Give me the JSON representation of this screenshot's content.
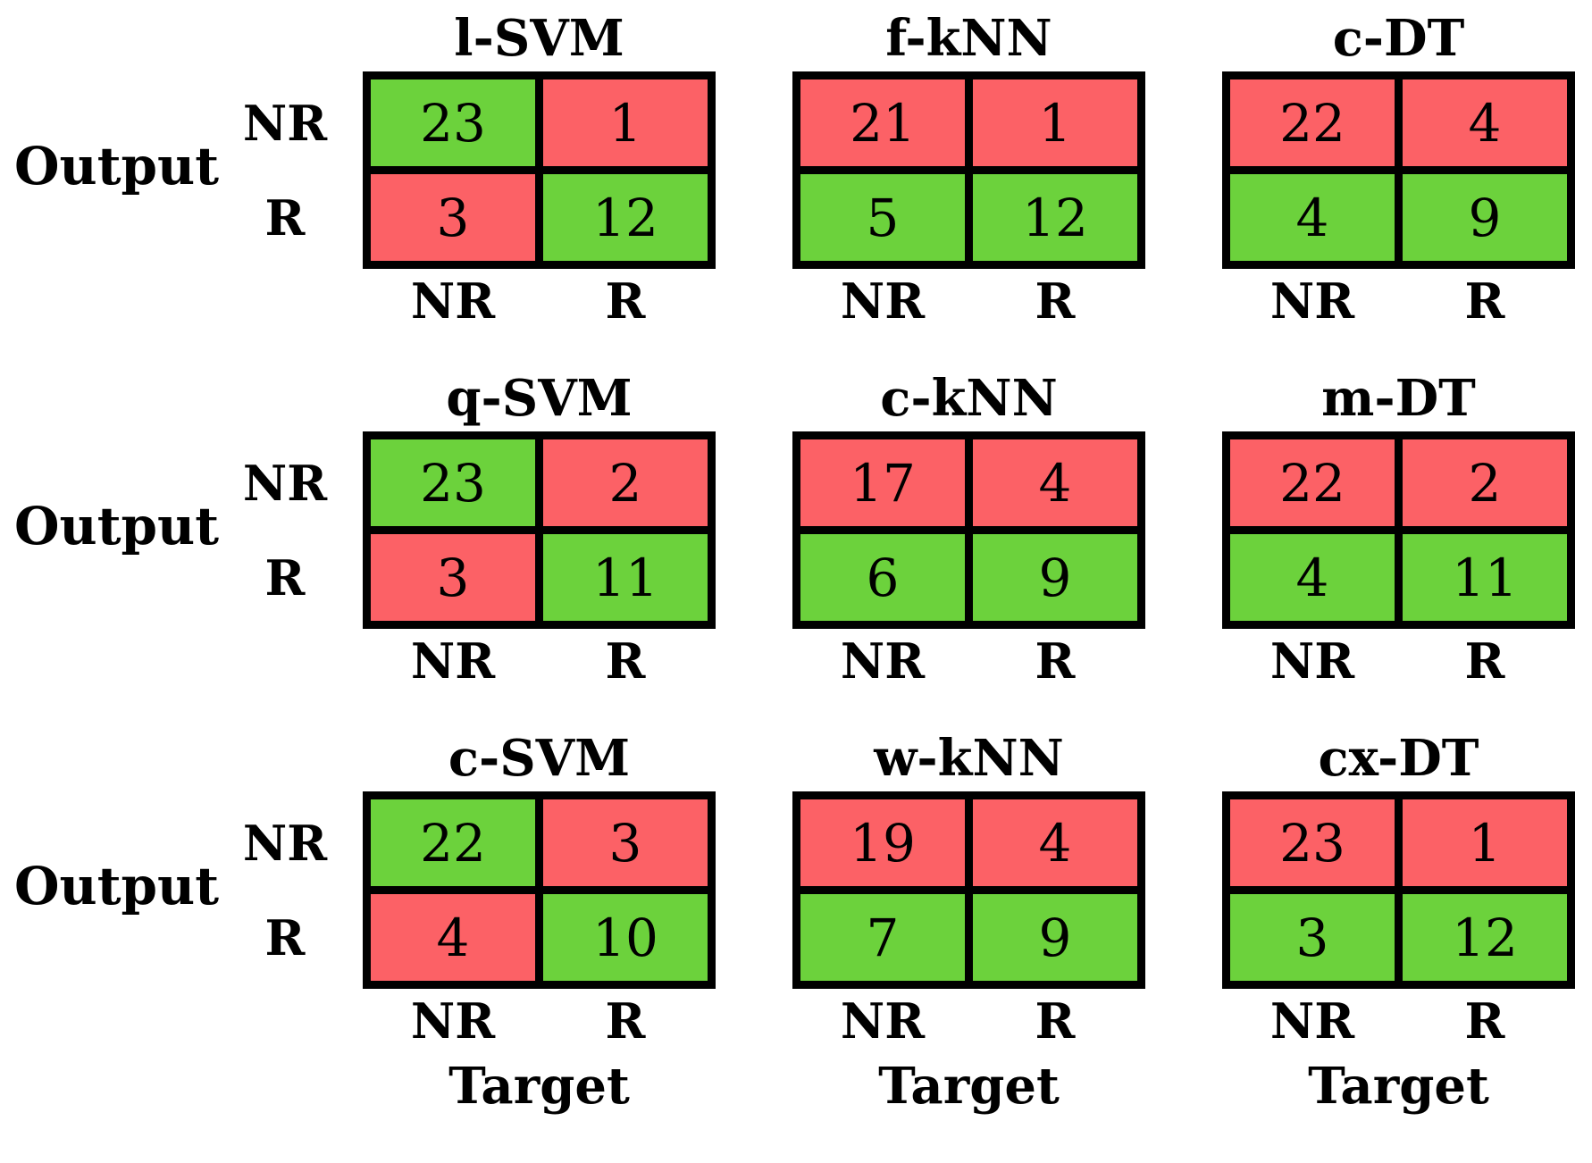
{
  "figure": {
    "output_label": "Output",
    "target_label": "Target",
    "row_labels": [
      "NR",
      "R"
    ],
    "col_labels": [
      "NR",
      "R"
    ]
  },
  "colors": {
    "cell_green": "#6CD23C",
    "cell_red": "#FC6166",
    "border": "#000000",
    "background": "#FFFFFF"
  },
  "chart_data": [
    {
      "type": "heatmap",
      "title": "l-SVM",
      "ylabel": "Output",
      "xlabel": "Target",
      "rows": [
        "NR",
        "R"
      ],
      "cols": [
        "NR",
        "R"
      ],
      "values": [
        [
          23,
          1
        ],
        [
          3,
          12
        ]
      ],
      "cell_colors": [
        [
          "green",
          "red"
        ],
        [
          "red",
          "green"
        ]
      ]
    },
    {
      "type": "heatmap",
      "title": "f-kNN",
      "ylabel": "Output",
      "xlabel": "Target",
      "rows": [
        "NR",
        "R"
      ],
      "cols": [
        "NR",
        "R"
      ],
      "values": [
        [
          21,
          1
        ],
        [
          5,
          12
        ]
      ],
      "cell_colors": [
        [
          "red",
          "red"
        ],
        [
          "green",
          "green"
        ]
      ]
    },
    {
      "type": "heatmap",
      "title": "c-DT",
      "ylabel": "Output",
      "xlabel": "Target",
      "rows": [
        "NR",
        "R"
      ],
      "cols": [
        "NR",
        "R"
      ],
      "values": [
        [
          22,
          4
        ],
        [
          4,
          9
        ]
      ],
      "cell_colors": [
        [
          "red",
          "red"
        ],
        [
          "green",
          "green"
        ]
      ]
    },
    {
      "type": "heatmap",
      "title": "q-SVM",
      "ylabel": "Output",
      "xlabel": "Target",
      "rows": [
        "NR",
        "R"
      ],
      "cols": [
        "NR",
        "R"
      ],
      "values": [
        [
          23,
          2
        ],
        [
          3,
          11
        ]
      ],
      "cell_colors": [
        [
          "green",
          "red"
        ],
        [
          "red",
          "green"
        ]
      ]
    },
    {
      "type": "heatmap",
      "title": "c-kNN",
      "ylabel": "Output",
      "xlabel": "Target",
      "rows": [
        "NR",
        "R"
      ],
      "cols": [
        "NR",
        "R"
      ],
      "values": [
        [
          17,
          4
        ],
        [
          6,
          9
        ]
      ],
      "cell_colors": [
        [
          "red",
          "red"
        ],
        [
          "green",
          "green"
        ]
      ]
    },
    {
      "type": "heatmap",
      "title": "m-DT",
      "ylabel": "Output",
      "xlabel": "Target",
      "rows": [
        "NR",
        "R"
      ],
      "cols": [
        "NR",
        "R"
      ],
      "values": [
        [
          22,
          2
        ],
        [
          4,
          11
        ]
      ],
      "cell_colors": [
        [
          "red",
          "red"
        ],
        [
          "green",
          "green"
        ]
      ]
    },
    {
      "type": "heatmap",
      "title": "c-SVM",
      "ylabel": "Output",
      "xlabel": "Target",
      "rows": [
        "NR",
        "R"
      ],
      "cols": [
        "NR",
        "R"
      ],
      "values": [
        [
          22,
          3
        ],
        [
          4,
          10
        ]
      ],
      "cell_colors": [
        [
          "green",
          "red"
        ],
        [
          "red",
          "green"
        ]
      ]
    },
    {
      "type": "heatmap",
      "title": "w-kNN",
      "ylabel": "Output",
      "xlabel": "Target",
      "rows": [
        "NR",
        "R"
      ],
      "cols": [
        "NR",
        "R"
      ],
      "values": [
        [
          19,
          4
        ],
        [
          7,
          9
        ]
      ],
      "cell_colors": [
        [
          "red",
          "red"
        ],
        [
          "green",
          "green"
        ]
      ]
    },
    {
      "type": "heatmap",
      "title": "cx-DT",
      "ylabel": "Output",
      "xlabel": "Target",
      "rows": [
        "NR",
        "R"
      ],
      "cols": [
        "NR",
        "R"
      ],
      "values": [
        [
          23,
          1
        ],
        [
          3,
          12
        ]
      ],
      "cell_colors": [
        [
          "red",
          "red"
        ],
        [
          "green",
          "green"
        ]
      ]
    }
  ]
}
